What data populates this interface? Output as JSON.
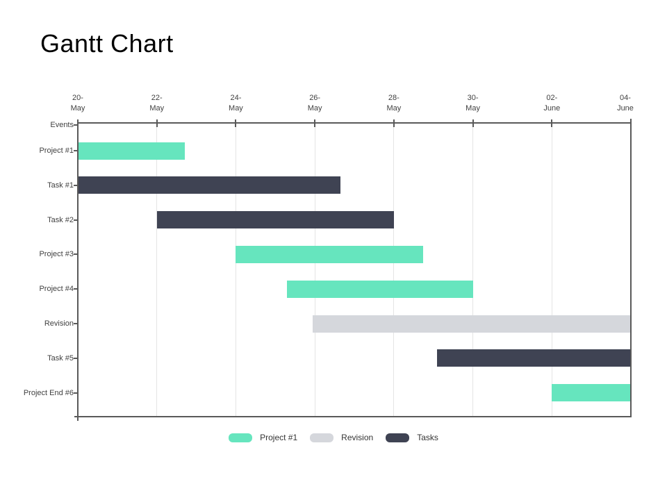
{
  "chart_data": {
    "type": "bar",
    "variant": "gantt",
    "title": "Gantt Chart",
    "x_axis": {
      "total_days": 14,
      "tick_interval_days": 2,
      "tick_labels": [
        [
          "20-",
          "May"
        ],
        [
          "22-",
          "May"
        ],
        [
          "24-",
          "May"
        ],
        [
          "26-",
          "May"
        ],
        [
          "28-",
          "May"
        ],
        [
          "30-",
          "May"
        ],
        [
          "02-",
          "June"
        ],
        [
          "04-",
          "June"
        ]
      ]
    },
    "rows": [
      {
        "label": "Events"
      },
      {
        "label": "Project #1",
        "start": 0,
        "end": 2.7,
        "series": "Project #1"
      },
      {
        "label": "Task #1",
        "start": 0,
        "end": 6.65,
        "series": "Tasks"
      },
      {
        "label": "Task #2",
        "start": 2,
        "end": 8,
        "series": "Tasks"
      },
      {
        "label": "Project #3",
        "start": 4,
        "end": 8.75,
        "series": "Project #1"
      },
      {
        "label": "Project #4",
        "start": 5.3,
        "end": 10,
        "series": "Project #1"
      },
      {
        "label": "Revision",
        "start": 5.95,
        "end": 14,
        "series": "Revision"
      },
      {
        "label": "Task #5",
        "start": 9.1,
        "end": 14,
        "series": "Tasks"
      },
      {
        "label": "Project End #6",
        "start": 12,
        "end": 14,
        "series": "Project #1"
      }
    ],
    "legend": [
      {
        "label": "Project #1",
        "color": "#66E5BE"
      },
      {
        "label": "Revision",
        "color": "#D5D7DC"
      },
      {
        "label": "Tasks",
        "color": "#3F4353"
      }
    ],
    "colors": {
      "axis_line": "#595959",
      "gridline": "#e4e4e4",
      "label_text": "#404040"
    },
    "grid": "vertical-only",
    "legend_position": "bottom-center"
  }
}
